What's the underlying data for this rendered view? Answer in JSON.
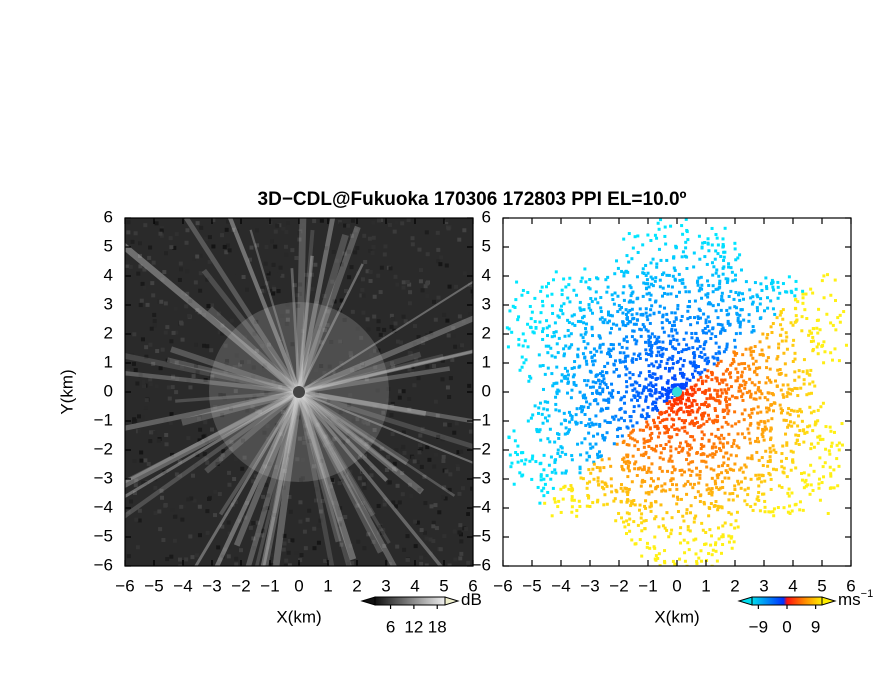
{
  "title": "3D−CDL@Fukuoka 170306 172803 PPI EL=10.0º",
  "chart_data": [
    {
      "type": "image",
      "xlabel": "X(km)",
      "ylabel": "Y(km)",
      "xlim": [
        -6,
        6
      ],
      "ylim": [
        -6,
        6
      ],
      "xticks": [
        {
          "value": -6,
          "label": "−6"
        },
        {
          "value": -5,
          "label": "−5"
        },
        {
          "value": -4,
          "label": "−4"
        },
        {
          "value": -3,
          "label": "−3"
        },
        {
          "value": -2,
          "label": "−2"
        },
        {
          "value": -1,
          "label": "−1"
        },
        0,
        1,
        2,
        3,
        4,
        5,
        6
      ],
      "yticks": [
        {
          "value": -6,
          "label": "−6"
        },
        {
          "value": -5,
          "label": "−5"
        },
        {
          "value": -4,
          "label": "−4"
        },
        {
          "value": -3,
          "label": "−3"
        },
        {
          "value": -2,
          "label": "−2"
        },
        {
          "value": -1,
          "label": "−1"
        },
        0,
        1,
        2,
        3,
        4,
        5,
        6
      ],
      "colorbar": {
        "label": "dB",
        "lim": [
          2,
          20
        ],
        "ticks": [
          6,
          12,
          18
        ]
      }
    },
    {
      "type": "image",
      "xlabel": "X(km)",
      "xlim": [
        -6,
        6
      ],
      "ylim": [
        -6,
        6
      ],
      "xticks": [
        {
          "value": -6,
          "label": "−6"
        },
        {
          "value": -5,
          "label": "−5"
        },
        {
          "value": -4,
          "label": "−4"
        },
        {
          "value": -3,
          "label": "−3"
        },
        {
          "value": -2,
          "label": "−2"
        },
        {
          "value": -1,
          "label": "−1"
        },
        0,
        1,
        2,
        3,
        4,
        5,
        6
      ],
      "yticks": [
        {
          "value": -6,
          "label": "−6"
        },
        {
          "value": -5,
          "label": "−5"
        },
        {
          "value": -4,
          "label": "−4"
        },
        {
          "value": -3,
          "label": "−3"
        },
        {
          "value": -2,
          "label": "−2"
        },
        {
          "value": -1,
          "label": "−1"
        },
        0,
        1,
        2,
        3,
        4,
        5,
        6
      ],
      "colorbar": {
        "label": "ms",
        "label_sup": "−1",
        "lim": [
          -11,
          11
        ],
        "ticks": [
          {
            "value": -9,
            "label": "−9"
          },
          0,
          9
        ]
      }
    }
  ]
}
